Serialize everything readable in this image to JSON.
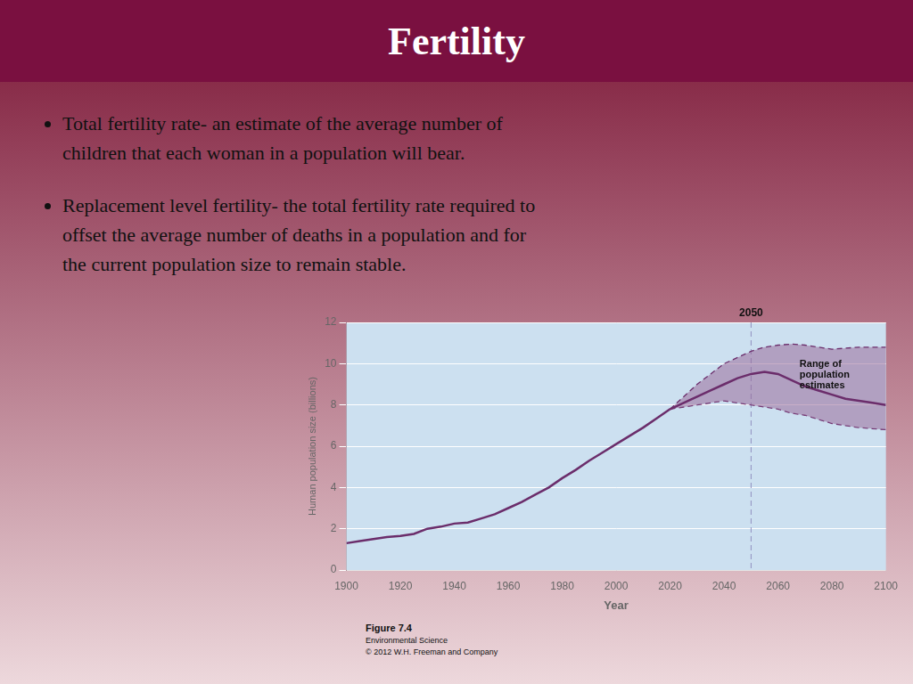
{
  "title": "Fertility",
  "title_color": "#ffffff",
  "title_bar_color": "#7A1040",
  "background": [
    "#7B1535",
    "#EDD8DC"
  ],
  "text_color": "#111111",
  "bullets": [
    [
      "Total fertility rate- an estimate of the average number of",
      "children that each woman in a population will bear."
    ],
    [
      "Replacement level fertility- the total fertility rate required to",
      "offset the average number of deaths in a population and for",
      "the current population size to remain stable."
    ]
  ],
  "caption": [
    "Figure 7.4",
    "Environmental Science",
    "© 2012 W.H. Freeman and Company"
  ],
  "chart_data": {
    "type": "line",
    "x_label": "Year",
    "y_label": "Human population size (billions)",
    "xlim": [
      1900,
      2100
    ],
    "xticks": [
      1900,
      1920,
      1940,
      1960,
      1980,
      2000,
      2020,
      2040,
      2060,
      2080,
      2100
    ],
    "ylim": [
      0,
      12
    ],
    "yticks": [
      0,
      2,
      4,
      6,
      8,
      10,
      12
    ],
    "grid": "y",
    "plot_background": "#cce0f0",
    "series": [
      {
        "x": [
          1900,
          1905,
          1910,
          1915,
          1920,
          1925,
          1930,
          1935,
          1940,
          1945,
          1950,
          1955,
          1960,
          1965,
          1970,
          1975,
          1980,
          1985,
          1990,
          1995,
          2000,
          2005,
          2010,
          2015,
          2020
        ],
        "values": [
          1.3,
          1.4,
          1.5,
          1.6,
          1.65,
          1.75,
          2.0,
          2.1,
          2.25,
          2.3,
          2.5,
          2.7,
          3.0,
          3.3,
          3.65,
          4.0,
          4.45,
          4.85,
          5.3,
          5.7,
          6.1,
          6.5,
          6.9,
          7.35,
          7.8
        ],
        "color": "#6B2D6B",
        "line_style": "solid"
      },
      {
        "x": [
          2020,
          2025,
          2030,
          2035,
          2040,
          2045,
          2050,
          2055,
          2060,
          2065,
          2070,
          2075,
          2080,
          2085,
          2090,
          2095,
          2100
        ],
        "values": [
          7.8,
          8.1,
          8.4,
          8.7,
          9.0,
          9.3,
          9.5,
          9.6,
          9.5,
          9.2,
          8.9,
          8.7,
          8.5,
          8.3,
          8.2,
          8.1,
          8.0
        ],
        "color": "#6B2D6B",
        "line_style": "solid"
      }
    ],
    "band": {
      "x": [
        2020,
        2025,
        2030,
        2035,
        2040,
        2045,
        2050,
        2055,
        2060,
        2065,
        2070,
        2075,
        2080,
        2085,
        2090,
        2095,
        2100
      ],
      "low": [
        7.8,
        7.9,
        8.0,
        8.1,
        8.2,
        8.1,
        8.0,
        7.9,
        7.8,
        7.6,
        7.5,
        7.3,
        7.1,
        7.0,
        6.9,
        6.85,
        6.8
      ],
      "high": [
        7.8,
        8.4,
        9.0,
        9.5,
        10.0,
        10.3,
        10.6,
        10.8,
        10.9,
        10.95,
        10.9,
        10.8,
        10.7,
        10.75,
        10.8,
        10.8,
        10.8
      ],
      "color": "#9B6B9B",
      "line_color": "#6B2D6B",
      "line_style": "dashed"
    },
    "vlines": [
      {
        "x": 2050,
        "label": "2050",
        "color": "#9090C0",
        "line_style": "dashed"
      }
    ],
    "annotations": [
      {
        "text": "Range of\npopulation\nestimates",
        "x": 2068,
        "y": 10.2,
        "color": "#111111"
      }
    ]
  }
}
